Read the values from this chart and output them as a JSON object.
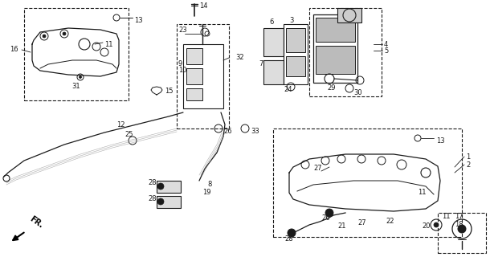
{
  "bg_color": "#ffffff",
  "line_color": "#1a1a1a",
  "fig_width": 6.1,
  "fig_height": 3.2,
  "dpi": 100,
  "gray": "#888888",
  "lightgray": "#cccccc",
  "darkgray": "#555555"
}
